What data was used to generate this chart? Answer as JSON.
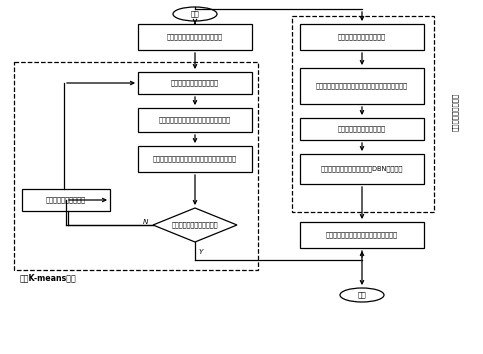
{
  "bg_color": "#ffffff",
  "border_color": "#000000",
  "box_color": "#ffffff",
  "arrow_color": "#000000",
  "text_color": "#000000",
  "left_label": "改进K-means聚类",
  "right_label": "训练深度网络参数值",
  "start_text": "开始",
  "end_text": "结束",
  "box1_text": "建立光伏电源三阶模型优化模型",
  "box2_text": "输入当前光伏电源的各参数",
  "box3_text": "计算当前光伏电源的特征性参数评估指标",
  "box4_text": "根据当前光伏电源的特征性参数判断属于哪一簇",
  "box5_text": "切换到下一个光伏电源",
  "diamond_text": "是否还有光伏电源没有处理",
  "rbox1_text": "判断集群的聚合操作点等值",
  "rbox2_text": "设置外部激动，记录激动室及控制的有功和无功输出",
  "rbox3_text": "输入实际数据训练神经网络",
  "rbox4_text": "训练各层最优网络参数，得到DBN等值模型",
  "rbox5_text": "设置网络的外部激动，验证模型的正确性",
  "N_label": "N",
  "Y_label": "Y"
}
